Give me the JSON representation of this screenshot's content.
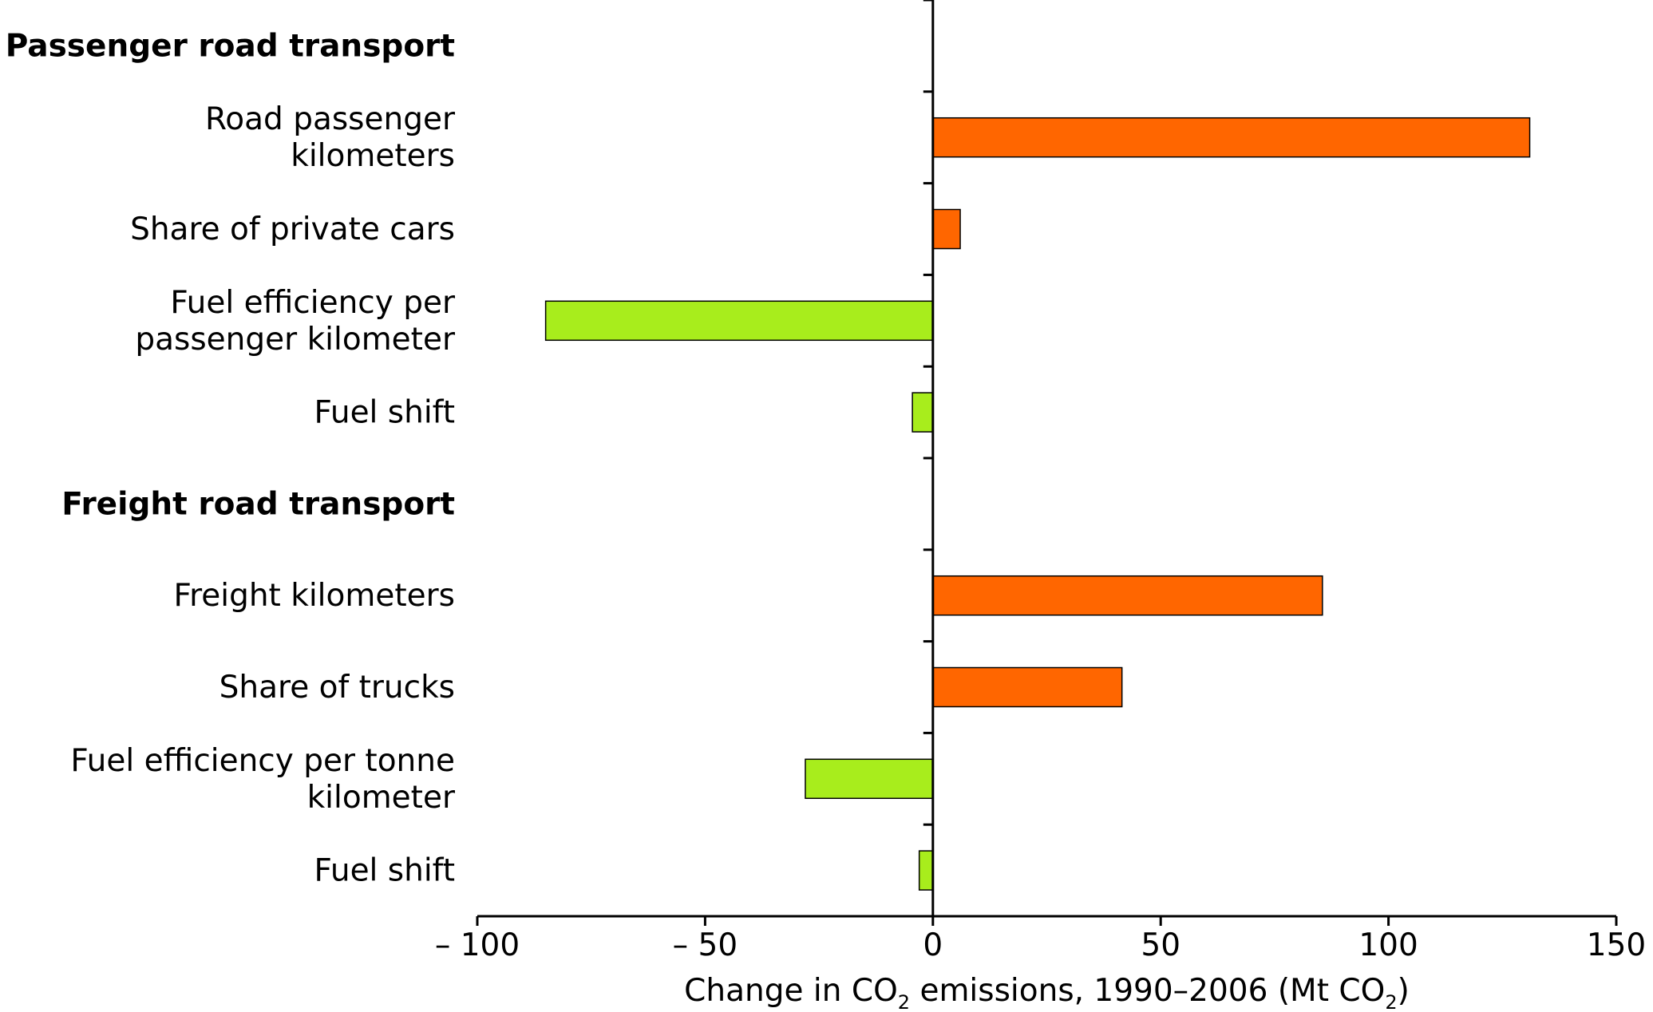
{
  "chart_data": {
    "type": "bar",
    "orientation": "horizontal",
    "title": "",
    "xlabel": {
      "prefix": "Change in CO",
      "sub1": "2",
      "middle": " emissions, 1990–2006 (Mt CO",
      "sub2": "2",
      "suffix": ")"
    },
    "xlim": [
      -100,
      150
    ],
    "xticks": [
      -100,
      -50,
      0,
      50,
      100,
      150
    ],
    "xtick_labels": [
      "– 100",
      "– 50",
      "0",
      "50",
      "100",
      "150"
    ],
    "grid": false,
    "legend": "none",
    "colors": {
      "increase": "#ff6600",
      "decrease": "#a8ed1c",
      "outline": "#000000"
    },
    "categories": [
      {
        "label": [
          "Passenger road transport"
        ],
        "header": true,
        "value": null
      },
      {
        "label": [
          "Road passenger",
          "kilometers"
        ],
        "header": false,
        "value": 131
      },
      {
        "label": [
          "Share of private cars"
        ],
        "header": false,
        "value": 6
      },
      {
        "label": [
          "Fuel efficiency per",
          "passenger kilometer"
        ],
        "header": false,
        "value": -85
      },
      {
        "label": [
          "Fuel shift"
        ],
        "header": false,
        "value": -4.5
      },
      {
        "label": [
          "Freight road transport"
        ],
        "header": true,
        "value": null
      },
      {
        "label": [
          "Freight kilometers"
        ],
        "header": false,
        "value": 85.5
      },
      {
        "label": [
          "Share of trucks"
        ],
        "header": false,
        "value": 41.5
      },
      {
        "label": [
          "Fuel efficiency per tonne",
          "kilometer"
        ],
        "header": false,
        "value": -28
      },
      {
        "label": [
          "Fuel shift"
        ],
        "header": false,
        "value": -3
      }
    ]
  }
}
